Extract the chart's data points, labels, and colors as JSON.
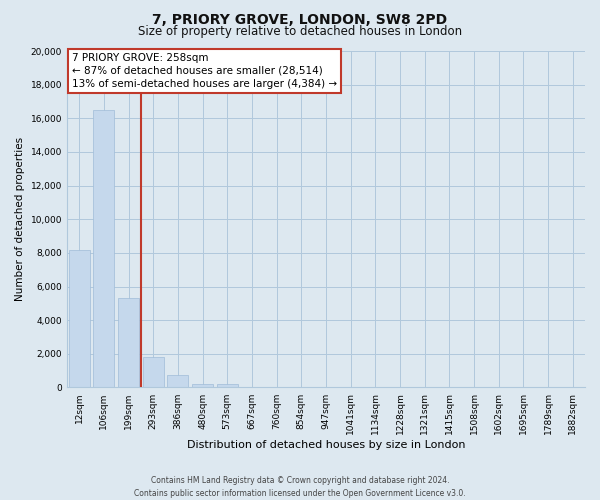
{
  "title": "7, PRIORY GROVE, LONDON, SW8 2PD",
  "subtitle": "Size of property relative to detached houses in London",
  "xlabel": "Distribution of detached houses by size in London",
  "ylabel": "Number of detached properties",
  "bar_labels": [
    "12sqm",
    "106sqm",
    "199sqm",
    "293sqm",
    "386sqm",
    "480sqm",
    "573sqm",
    "667sqm",
    "760sqm",
    "854sqm",
    "947sqm",
    "1041sqm",
    "1134sqm",
    "1228sqm",
    "1321sqm",
    "1415sqm",
    "1508sqm",
    "1602sqm",
    "1695sqm",
    "1789sqm",
    "1882sqm"
  ],
  "bar_values": [
    8200,
    16500,
    5300,
    1800,
    750,
    230,
    220,
    0,
    0,
    0,
    0,
    0,
    0,
    0,
    0,
    0,
    0,
    0,
    0,
    0,
    0
  ],
  "bar_color": "#c5d8ec",
  "bar_edge_color": "#a0bcd8",
  "vline_color": "#c0392b",
  "vline_position": 2.5,
  "ylim": [
    0,
    20000
  ],
  "yticks": [
    0,
    2000,
    4000,
    6000,
    8000,
    10000,
    12000,
    14000,
    16000,
    18000,
    20000
  ],
  "annotation_title": "7 PRIORY GROVE: 258sqm",
  "annotation_line1": "← 87% of detached houses are smaller (28,514)",
  "annotation_line2": "13% of semi-detached houses are larger (4,384) →",
  "annotation_box_facecolor": "#ffffff",
  "annotation_box_edgecolor": "#c0392b",
  "footer_line1": "Contains HM Land Registry data © Crown copyright and database right 2024.",
  "footer_line2": "Contains public sector information licensed under the Open Government Licence v3.0.",
  "fig_facecolor": "#dde8f0",
  "plot_facecolor": "#dde8f0",
  "grid_color": "#b0c8dc",
  "title_fontsize": 10,
  "subtitle_fontsize": 8.5,
  "ylabel_fontsize": 7.5,
  "xlabel_fontsize": 8,
  "tick_fontsize": 6.5,
  "ann_fontsize": 7.5,
  "footer_fontsize": 5.5
}
